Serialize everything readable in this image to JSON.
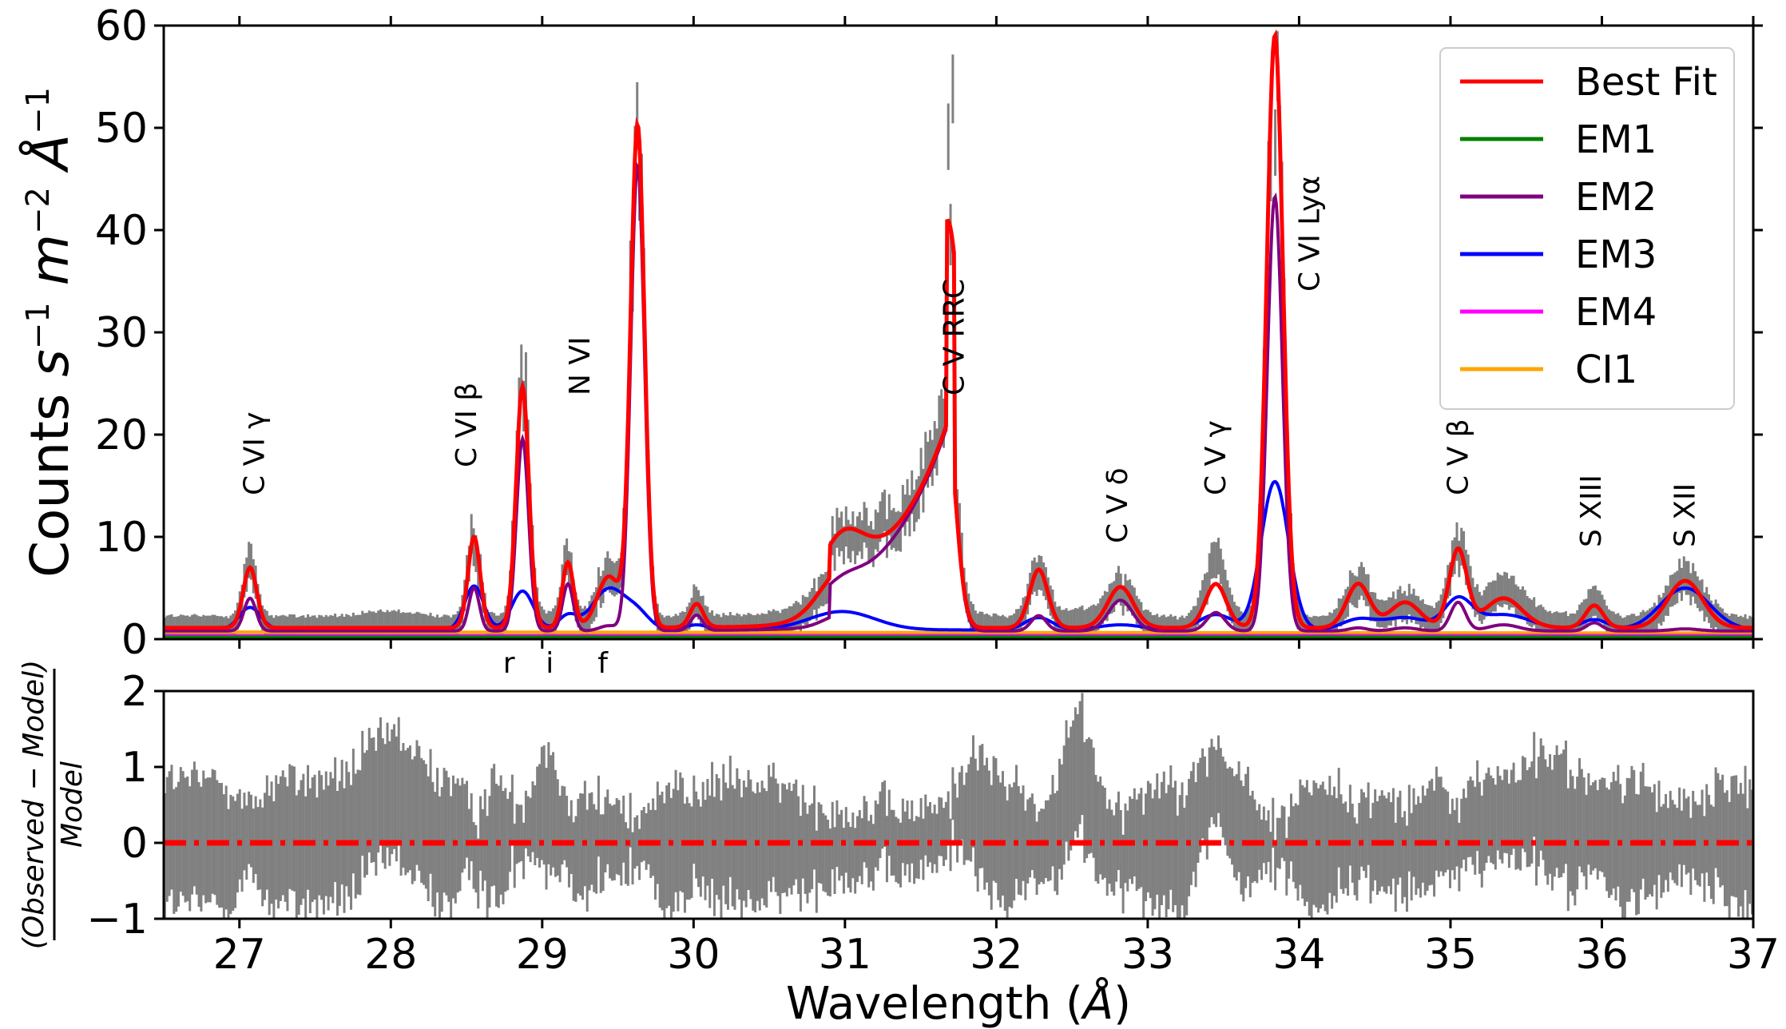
{
  "chart_data": [
    {
      "type": "line",
      "panel": "top",
      "xlabel": "Wavelength (Å)",
      "ylabel": "Counts s⁻¹ m⁻² Å⁻¹",
      "xlim": [
        26.5,
        37
      ],
      "ylim": [
        0,
        60
      ],
      "xticks": [
        27,
        28,
        29,
        30,
        31,
        32,
        33,
        34,
        35,
        36,
        37
      ],
      "yticks": [
        0,
        10,
        20,
        30,
        40,
        50,
        60
      ],
      "legend_position": "top-right",
      "series": [
        {
          "name": "Best Fit",
          "color": "#ff0000"
        },
        {
          "name": "EM1",
          "color": "#008000"
        },
        {
          "name": "EM2",
          "color": "#800080"
        },
        {
          "name": "EM3",
          "color": "#0000ff"
        },
        {
          "name": "EM4",
          "color": "#ff00ff"
        },
        {
          "name": "CI1",
          "color": "#ffa500"
        }
      ],
      "line_components": [
        {
          "center": 27.07,
          "em2": 3.2,
          "em3": 2.2,
          "other": 0.5,
          "width": 0.04
        },
        {
          "center": 28.55,
          "em2": 4.2,
          "em3": 4.3,
          "other": 0.4,
          "width": 0.035
        },
        {
          "center": 28.87,
          "em2": 18.8,
          "em3": 3.8,
          "other": 1.0,
          "width": 0.04
        },
        {
          "center": 29.17,
          "em2": 4.6,
          "em3": 1.4,
          "other": 0.4,
          "width": 0.035
        },
        {
          "center": 29.44,
          "em2": 0.5,
          "em3": 4.0,
          "other": 0.5,
          "width": 0.06
        },
        {
          "center": 29.63,
          "em2": 45.5,
          "em3": 1.5,
          "other": 2.0,
          "width": 0.045
        },
        {
          "center": 30.02,
          "em2": 1.5,
          "em3": 0.5,
          "other": 0.3,
          "width": 0.04
        },
        {
          "center": 30.98,
          "em2": 1.2,
          "em3": 1.8,
          "other": 1.5,
          "width": 0.12
        },
        {
          "center": 32.28,
          "em2": 1.5,
          "em3": 1.2,
          "other": 3.0,
          "width": 0.05
        },
        {
          "center": 32.82,
          "em2": 3.0,
          "em3": 0.5,
          "other": 0.5,
          "width": 0.08
        },
        {
          "center": 33.45,
          "em2": 1.8,
          "em3": 1.5,
          "other": 1.0,
          "width": 0.06
        },
        {
          "center": 33.84,
          "em2": 42.5,
          "em3": 14.5,
          "other": 1.0,
          "width": 0.05
        },
        {
          "center": 34.39,
          "em2": 0.3,
          "em3": 1.0,
          "other": 3.0,
          "width": 0.06
        },
        {
          "center": 34.7,
          "em2": 0.3,
          "em3": 1.2,
          "other": 1.0,
          "width": 0.08
        },
        {
          "center": 35.05,
          "em2": 2.8,
          "em3": 2.8,
          "other": 2.0,
          "width": 0.05
        },
        {
          "center": 35.35,
          "em2": 0.6,
          "em3": 1.5,
          "other": 0.8,
          "width": 0.1
        },
        {
          "center": 35.95,
          "em2": 0.8,
          "em3": 1.0,
          "other": 0.4,
          "width": 0.05
        },
        {
          "center": 36.55,
          "em2": 0.2,
          "em3": 4.1,
          "other": 0.3,
          "width": 0.09
        }
      ],
      "rrc": {
        "edge": 31.67,
        "peak": 19.8,
        "rise_scale": 0.45
      },
      "continuum": {
        "value": 1.3,
        "ci1_level": 0.7
      },
      "line_labels": [
        {
          "text": "C VI γ",
          "x": 27.1
        },
        {
          "text": "C VI β",
          "x": 28.5
        },
        {
          "text": "N VI",
          "x": 29.25
        },
        {
          "text": "C V RRC",
          "x": 31.72
        },
        {
          "text": "C V δ",
          "x": 32.8
        },
        {
          "text": "C V γ",
          "x": 33.45
        },
        {
          "text": "C VI Lyα",
          "x": 34.07
        },
        {
          "text": "C V β",
          "x": 35.05
        },
        {
          "text": "S XIII",
          "x": 35.93
        },
        {
          "text": "S XII",
          "x": 36.55
        }
      ],
      "triplet_labels": [
        {
          "text": "r",
          "x": 28.78
        },
        {
          "text": "i",
          "x": 29.05
        },
        {
          "text": "f",
          "x": 29.4
        }
      ]
    },
    {
      "type": "line",
      "panel": "bottom",
      "xlabel": "Wavelength (Å)",
      "ylabel": "(Observed − Model) / Model",
      "xlim": [
        26.5,
        37
      ],
      "ylim": [
        -1,
        2
      ],
      "yticks": [
        -1,
        0,
        1,
        2
      ],
      "reference_line": {
        "y": 0,
        "color": "#ff0000",
        "style": "dash-dot"
      },
      "residual_bumps": [
        {
          "center": 28.0,
          "amp": 0.6,
          "width": 0.15
        },
        {
          "center": 29.0,
          "amp": 0.5,
          "width": 0.1
        },
        {
          "center": 31.8,
          "amp": 0.5,
          "width": 0.1
        },
        {
          "center": 32.55,
          "amp": 0.9,
          "width": 0.08
        },
        {
          "center": 33.45,
          "amp": 0.8,
          "width": 0.08
        },
        {
          "center": 35.5,
          "amp": 0.4,
          "width": 0.3
        }
      ]
    }
  ]
}
